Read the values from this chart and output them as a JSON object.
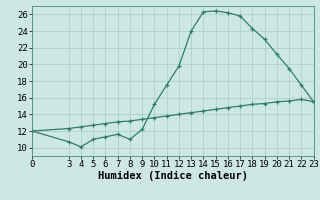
{
  "title": "",
  "xlabel": "Humidex (Indice chaleur)",
  "bg_color": "#cde8e4",
  "grid_color": "#b0d4cf",
  "line_color": "#2e7d6e",
  "xlim": [
    0,
    23
  ],
  "ylim": [
    9,
    27
  ],
  "xticks": [
    0,
    3,
    4,
    5,
    6,
    7,
    8,
    9,
    10,
    11,
    12,
    13,
    14,
    15,
    16,
    17,
    18,
    19,
    20,
    21,
    22,
    23
  ],
  "yticks": [
    10,
    12,
    14,
    16,
    18,
    20,
    22,
    24,
    26
  ],
  "series1_x": [
    0,
    3,
    4,
    5,
    6,
    7,
    8,
    9,
    10,
    11,
    12,
    13,
    14,
    15,
    16,
    17,
    18,
    19,
    20,
    21,
    22,
    23
  ],
  "series1_y": [
    12.0,
    10.7,
    10.1,
    11.0,
    11.3,
    11.6,
    11.0,
    12.2,
    15.2,
    17.5,
    19.8,
    24.0,
    26.3,
    26.4,
    26.2,
    25.8,
    24.3,
    23.0,
    21.2,
    19.5,
    17.5,
    15.5
  ],
  "series2_x": [
    0,
    3,
    4,
    5,
    6,
    7,
    8,
    9,
    10,
    11,
    12,
    13,
    14,
    15,
    16,
    17,
    18,
    19,
    20,
    21,
    22,
    23
  ],
  "series2_y": [
    12.0,
    12.3,
    12.5,
    12.7,
    12.9,
    13.1,
    13.2,
    13.4,
    13.6,
    13.8,
    14.0,
    14.2,
    14.4,
    14.6,
    14.8,
    15.0,
    15.2,
    15.3,
    15.5,
    15.6,
    15.8,
    15.5
  ],
  "tick_fontsize": 6.5,
  "label_fontsize": 7.5
}
